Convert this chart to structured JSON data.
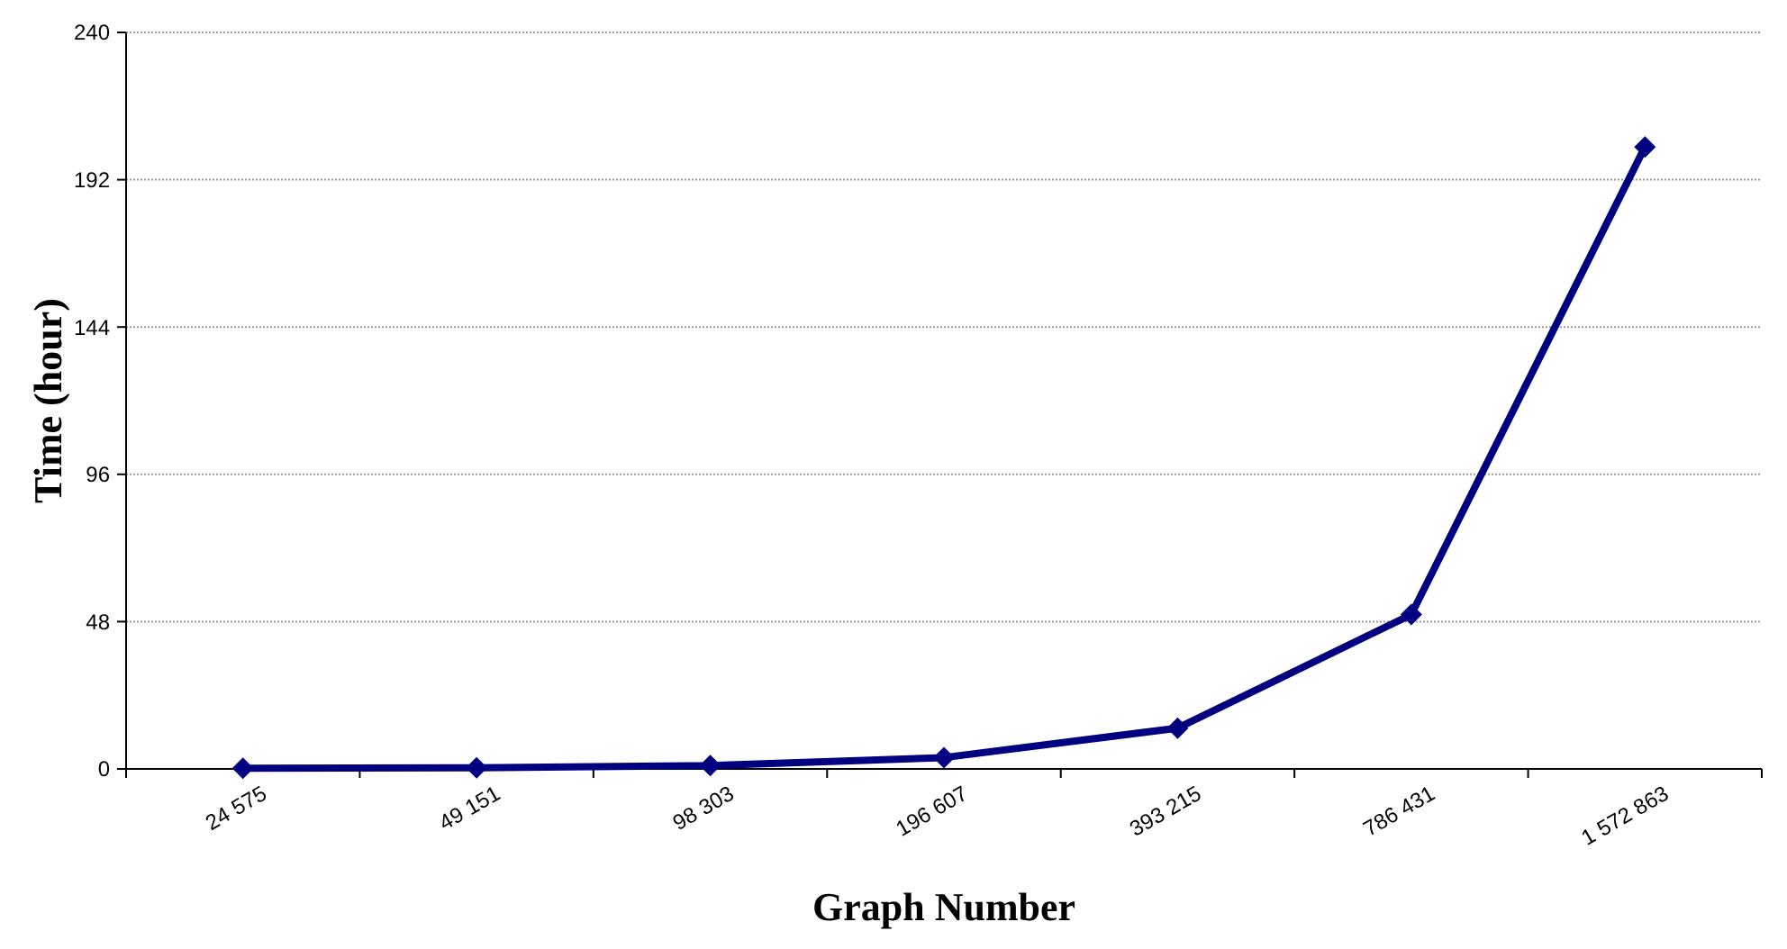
{
  "chart_data": {
    "type": "line",
    "xlabel": "Graph Number",
    "ylabel": "Time (hour)",
    "categories": [
      "24 575",
      "49 151",
      "98 303",
      "196 607",
      "393 215",
      "786 431",
      "1 572 863"
    ],
    "series": [
      {
        "color": "#000080",
        "values": [
          0.2,
          0.4,
          1.1,
          3.7,
          13.3,
          50.3,
          202.7
        ]
      }
    ],
    "ylim": [
      0,
      240
    ],
    "yticks": [
      0,
      48,
      96,
      144,
      192,
      240
    ],
    "grid": "y",
    "marker": "diamond",
    "line_style": "solid"
  }
}
